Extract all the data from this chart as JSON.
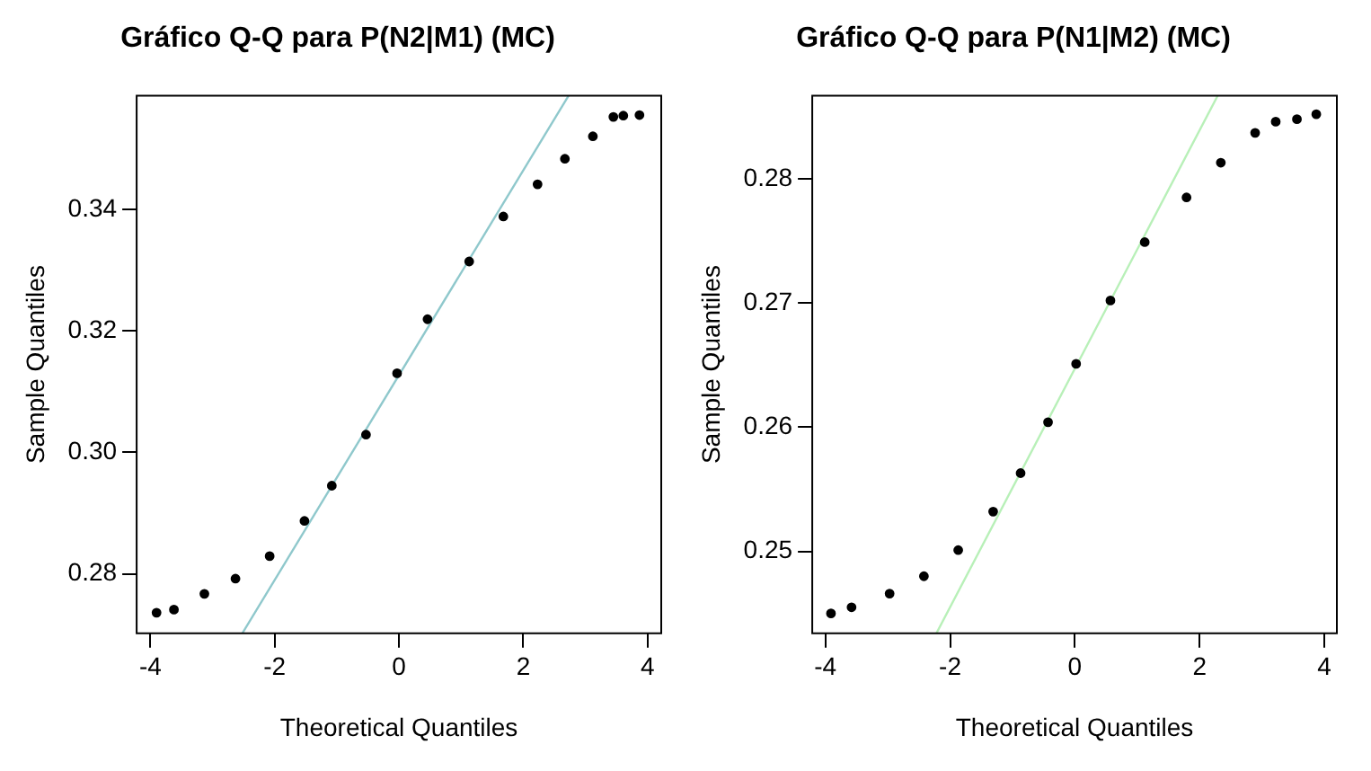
{
  "chart_data": [
    {
      "type": "scatter",
      "title": "Gráfico Q-Q para P(N2|M1) (MC)",
      "xlabel": "Theoretical Quantiles",
      "ylabel": "Sample Quantiles",
      "xlim": [
        -4.22,
        4.22
      ],
      "ylim": [
        0.2702,
        0.3587
      ],
      "xticks": [
        -4,
        -2,
        0,
        2,
        4
      ],
      "yticks": [
        0.28,
        {
          "value": 0.3,
          "label": "0.30"
        },
        0.32,
        0.34
      ],
      "grid": false,
      "series": [
        {
          "type": "scatter",
          "marker": "circle",
          "color": "#000000",
          "x": [
            -3.9,
            -3.62,
            -3.13,
            -2.63,
            -2.08,
            -1.52,
            -1.08,
            -0.53,
            -0.03,
            0.46,
            1.13,
            1.68,
            2.23,
            2.67,
            3.12,
            3.45,
            3.61,
            3.87
          ],
          "values": [
            0.2736,
            0.2741,
            0.2767,
            0.2792,
            0.2829,
            0.2887,
            0.2945,
            0.3029,
            0.313,
            0.3219,
            0.3314,
            0.3388,
            0.3441,
            0.3483,
            0.352,
            0.3552,
            0.3554,
            0.3555
          ]
        },
        {
          "type": "line",
          "color": "#8fc8cc",
          "x": [
            -2.52,
            2.73
          ],
          "values": [
            0.2702,
            0.3587
          ]
        }
      ]
    },
    {
      "type": "scatter",
      "title": "Gráfico Q-Q para P(N1|M2) (MC)",
      "xlabel": "Theoretical Quantiles",
      "ylabel": "Sample Quantiles",
      "xlim": [
        -4.21,
        4.2
      ],
      "ylim": [
        0.2434,
        0.2867
      ],
      "xticks": [
        -4,
        -2,
        0,
        2,
        4
      ],
      "yticks": [
        0.25,
        0.26,
        0.27,
        0.28
      ],
      "grid": false,
      "series": [
        {
          "type": "scatter",
          "marker": "circle",
          "color": "#000000",
          "x": [
            -3.91,
            -3.58,
            -2.97,
            -2.42,
            -1.87,
            -1.31,
            -0.87,
            -0.43,
            0.02,
            0.57,
            1.12,
            1.79,
            2.34,
            2.89,
            3.22,
            3.56,
            3.87
          ],
          "values": [
            0.245,
            0.2455,
            0.2466,
            0.248,
            0.2501,
            0.2532,
            0.2563,
            0.2604,
            0.2651,
            0.2702,
            0.2749,
            0.2785,
            0.2813,
            0.2837,
            0.2846,
            0.2848,
            0.2852
          ]
        },
        {
          "type": "line",
          "color": "#b8f0b8",
          "x": [
            -2.22,
            2.29
          ],
          "values": [
            0.2434,
            0.2867
          ]
        }
      ]
    }
  ]
}
